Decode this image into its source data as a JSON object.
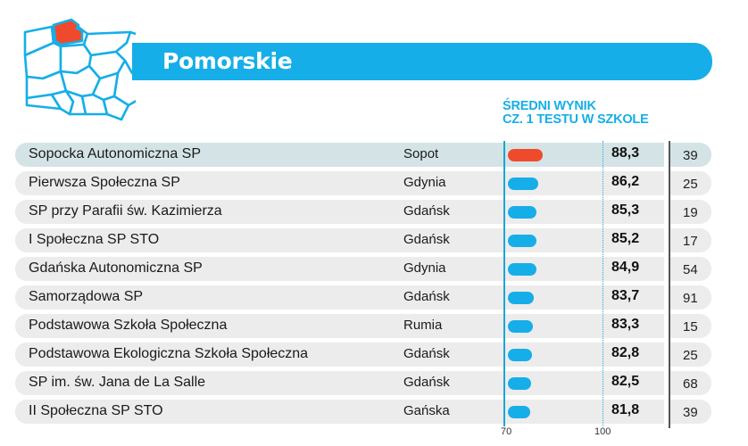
{
  "header": {
    "title": "Pomorskie",
    "highlighted_region": "pomorskie",
    "column_header_line1": "ŚREDNI WYNIK",
    "column_header_line2": "CZ. 1 TESTU W SZKOLE"
  },
  "colors": {
    "accent_blue": "#16aee8",
    "highlight_red": "#f04a2c",
    "row_bg": "#ececec",
    "row_highlight_bg": "#d4e4e6"
  },
  "axis": {
    "min_label": "70",
    "max_label": "100"
  },
  "rows": [
    {
      "name": "Sopocka Autonomiczna SP",
      "city": "Sopot",
      "score": "88,3",
      "count": "39",
      "highlight": true
    },
    {
      "name": "Pierwsza Społeczna SP",
      "city": "Gdynia",
      "score": "86,2",
      "count": "25",
      "highlight": false
    },
    {
      "name": "SP przy Parafii św. Kazimierza",
      "city": "Gdańsk",
      "score": "85,3",
      "count": "19",
      "highlight": false
    },
    {
      "name": "I Społeczna SP STO",
      "city": "Gdańsk",
      "score": "85,2",
      "count": "17",
      "highlight": false
    },
    {
      "name": "Gdańska Autonomiczna SP",
      "city": "Gdynia",
      "score": "84,9",
      "count": "54",
      "highlight": false
    },
    {
      "name": "Samorządowa SP",
      "city": "Gdańsk",
      "score": "83,7",
      "count": "91",
      "highlight": false
    },
    {
      "name": "Podstawowa Szkoła Społeczna",
      "city": "Rumia",
      "score": "83,3",
      "count": "15",
      "highlight": false
    },
    {
      "name": "Podstawowa Ekologiczna Szkoła Społeczna",
      "city": "Gdańsk",
      "score": "82,8",
      "count": "25",
      "highlight": false
    },
    {
      "name": "SP im. św. Jana de La Salle",
      "city": "Gdańsk",
      "score": "82,5",
      "count": "68",
      "highlight": false
    },
    {
      "name": "II Społeczna SP STO",
      "city": "Gańska",
      "score": "81,8",
      "count": "39",
      "highlight": false
    }
  ],
  "chart_data": {
    "type": "bar",
    "orientation": "horizontal",
    "title": "Pomorskie",
    "subtitle": "Średni wynik cz. 1 testu w szkole",
    "categories": [
      "Sopocka Autonomiczna SP",
      "Pierwsza Społeczna SP",
      "SP przy Parafii św. Kazimierza",
      "I Społeczna SP STO",
      "Gdańska Autonomiczna SP",
      "Samorządowa SP",
      "Podstawowa Szkoła Społeczna",
      "Podstawowa Ekologiczna Szkoła Społeczna",
      "SP im. św. Jana de La Salle",
      "II Społeczna SP STO"
    ],
    "cities": [
      "Sopot",
      "Gdynia",
      "Gdańsk",
      "Gdańsk",
      "Gdynia",
      "Gdańsk",
      "Rumia",
      "Gdańsk",
      "Gdańsk",
      "Gańska"
    ],
    "values": [
      88.3,
      86.2,
      85.3,
      85.2,
      84.9,
      83.7,
      83.3,
      82.8,
      82.5,
      81.8
    ],
    "counts": [
      39,
      25,
      19,
      17,
      54,
      91,
      15,
      25,
      68,
      39
    ],
    "xlim": [
      70,
      100
    ],
    "tick_labels": [
      "70",
      "100"
    ],
    "highlighted_index": 0,
    "xlabel": "",
    "ylabel": ""
  }
}
